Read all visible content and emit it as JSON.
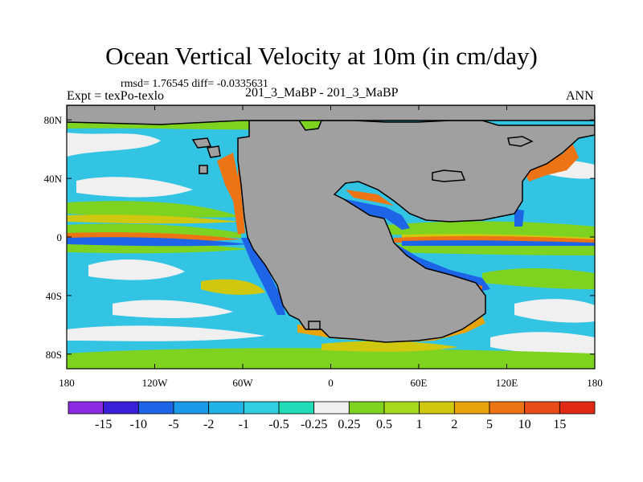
{
  "chart_data": {
    "type": "heatmap",
    "title": "Ocean Vertical Velocity at 10m (in cm/day)",
    "stats_line": "rmsd= 1.76545 diff= -0.0335631",
    "left_label": "Expt = texPo-texlo",
    "center_label": "201_3_MaBP - 201_3_MaBP",
    "right_label": "ANN",
    "x_axis": {
      "range": [
        -180,
        180
      ],
      "ticks": [
        "180",
        "120W",
        "60W",
        "0",
        "60E",
        "120E",
        "180"
      ]
    },
    "y_axis": {
      "range": [
        -90,
        90
      ],
      "ticks": [
        "80N",
        "40N",
        "0",
        "40S",
        "80S"
      ]
    },
    "contour_levels": [
      "-15",
      "-10",
      "-5",
      "-2",
      "-1",
      "-0.5",
      "-0.25",
      "0.25",
      "0.5",
      "1",
      "2",
      "5",
      "10",
      "15"
    ],
    "colorbar_colors": [
      "#8a2be2",
      "#3a1fd8",
      "#1e64e6",
      "#1a9ae8",
      "#22b4e6",
      "#32cfe0",
      "#22dcb8",
      "#f0f0f0",
      "#7ed321",
      "#a8d81e",
      "#d0c80e",
      "#e8a40c",
      "#ec7414",
      "#e84c18",
      "#e02a16"
    ],
    "land_color": "#a0a0a0",
    "background_color": "#33c4e4"
  }
}
